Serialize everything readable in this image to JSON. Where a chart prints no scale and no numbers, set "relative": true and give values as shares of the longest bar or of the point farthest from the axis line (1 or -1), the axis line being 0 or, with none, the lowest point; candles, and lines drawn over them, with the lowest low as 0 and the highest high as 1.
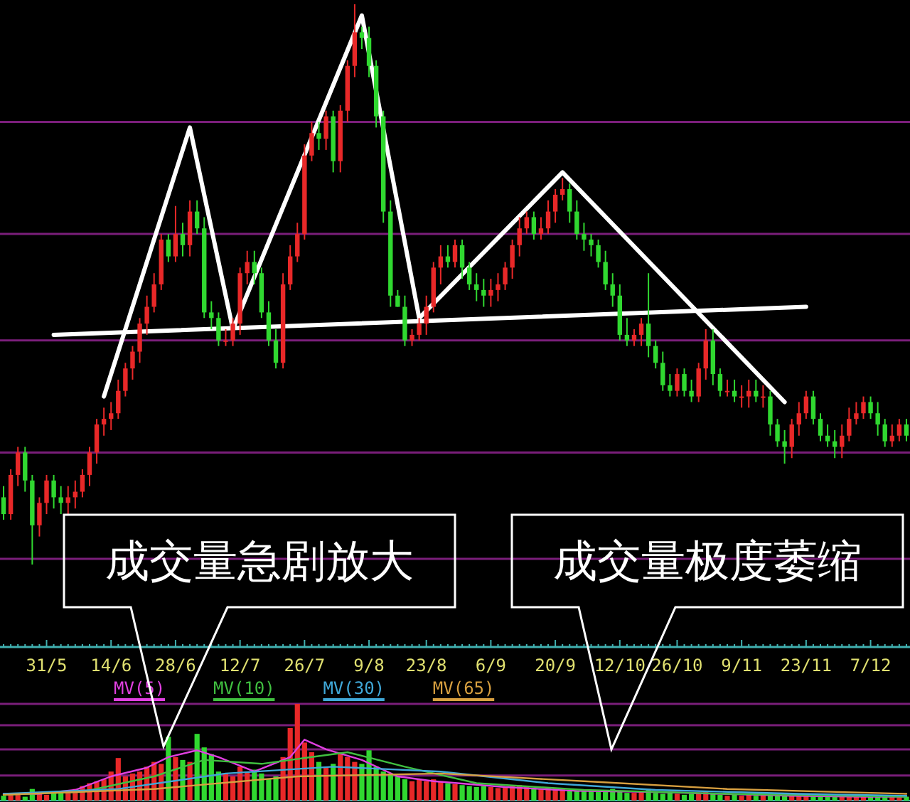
{
  "chart_data": [
    {
      "type": "candlestick",
      "relative": true,
      "tick_labels": false,
      "ref_lines": [
        {
          "axis": "y",
          "value": 0.79,
          "color": "#7a1e7a"
        },
        {
          "axis": "y",
          "value": 0.59,
          "color": "#7a1e7a"
        },
        {
          "axis": "y",
          "value": 0.4,
          "color": "#7a1e7a"
        },
        {
          "axis": "y",
          "value": 0.2,
          "color": "#7a1e7a"
        },
        {
          "axis": "y",
          "value": 0.01,
          "color": "#7a1e7a"
        }
      ],
      "categories": [
        null,
        null,
        null,
        null,
        null,
        null,
        null,
        null,
        null,
        null,
        null,
        null,
        null,
        null,
        null,
        null,
        null,
        null,
        null,
        null,
        null,
        null,
        null,
        null,
        null,
        null,
        null,
        null,
        null,
        null,
        null,
        null,
        null,
        null,
        null,
        null,
        null,
        null,
        null,
        null,
        null,
        null,
        null,
        null,
        null,
        null,
        null,
        null,
        null,
        null,
        null,
        null,
        null,
        null,
        null,
        null,
        null,
        null,
        null,
        null,
        null,
        null,
        null,
        null,
        null,
        null,
        null,
        null,
        null,
        null,
        null,
        null,
        null,
        null,
        null,
        null,
        null,
        null,
        null,
        null,
        null,
        null,
        null,
        null,
        null,
        null,
        null,
        null,
        null,
        null,
        null,
        null,
        null,
        null,
        null,
        null,
        null,
        null,
        null,
        null,
        null,
        null,
        null,
        null,
        null,
        null,
        null,
        null,
        null,
        null,
        null,
        null,
        null,
        null,
        null,
        null,
        null,
        null,
        null,
        null,
        null,
        null,
        null,
        null,
        null,
        null,
        null
      ],
      "ohlc": [
        [
          0.12,
          0.14,
          0.08,
          0.09
        ],
        [
          0.09,
          0.17,
          0.08,
          0.16
        ],
        [
          0.16,
          0.21,
          0.14,
          0.2
        ],
        [
          0.2,
          0.21,
          0.13,
          0.15
        ],
        [
          0.15,
          0.16,
          0,
          0.07
        ],
        [
          0.07,
          0.12,
          0.05,
          0.11
        ],
        [
          0.11,
          0.16,
          0.09,
          0.15
        ],
        [
          0.15,
          0.16,
          0.1,
          0.12
        ],
        [
          0.12,
          0.14,
          0.09,
          0.11
        ],
        [
          0.11,
          0.14,
          0.09,
          0.12
        ],
        [
          0.12,
          0.15,
          0.1,
          0.13
        ],
        [
          0.13,
          0.17,
          0.12,
          0.16
        ],
        [
          0.16,
          0.21,
          0.14,
          0.2
        ],
        [
          0.2,
          0.26,
          0.18,
          0.25
        ],
        [
          0.25,
          0.28,
          0.23,
          0.26
        ],
        [
          0.26,
          0.29,
          0.24,
          0.27
        ],
        [
          0.27,
          0.33,
          0.26,
          0.31
        ],
        [
          0.31,
          0.36,
          0.3,
          0.35
        ],
        [
          0.35,
          0.39,
          0.33,
          0.38
        ],
        [
          0.38,
          0.44,
          0.36,
          0.43
        ],
        [
          0.43,
          0.48,
          0.41,
          0.46
        ],
        [
          0.46,
          0.52,
          0.45,
          0.5
        ],
        [
          0.5,
          0.59,
          0.49,
          0.58
        ],
        [
          0.58,
          0.59,
          0.54,
          0.55
        ],
        [
          0.55,
          0.64,
          0.54,
          0.59
        ],
        [
          0.59,
          0.61,
          0.55,
          0.57
        ],
        [
          0.57,
          0.65,
          0.55,
          0.63
        ],
        [
          0.63,
          0.65,
          0.59,
          0.6
        ],
        [
          0.6,
          0.62,
          0.44,
          0.45
        ],
        [
          0.45,
          0.47,
          0.42,
          0.44
        ],
        [
          0.44,
          0.45,
          0.39,
          0.4
        ],
        [
          0.4,
          0.42,
          0.39,
          0.4
        ],
        [
          0.4,
          0.44,
          0.39,
          0.43
        ],
        [
          0.43,
          0.53,
          0.41,
          0.52
        ],
        [
          0.52,
          0.56,
          0.5,
          0.54
        ],
        [
          0.54,
          0.56,
          0.5,
          0.52
        ],
        [
          0.52,
          0.53,
          0.44,
          0.45
        ],
        [
          0.45,
          0.47,
          0.39,
          0.4
        ],
        [
          0.4,
          0.42,
          0.35,
          0.36
        ],
        [
          0.36,
          0.52,
          0.35,
          0.5
        ],
        [
          0.5,
          0.57,
          0.49,
          0.55
        ],
        [
          0.55,
          0.61,
          0.54,
          0.59
        ],
        [
          0.59,
          0.75,
          0.58,
          0.73
        ],
        [
          0.73,
          0.79,
          0.72,
          0.77
        ],
        [
          0.77,
          0.79,
          0.74,
          0.76
        ],
        [
          0.76,
          0.81,
          0.74,
          0.8
        ],
        [
          0.8,
          0.81,
          0.7,
          0.72
        ],
        [
          0.72,
          0.82,
          0.7,
          0.81
        ],
        [
          0.81,
          0.9,
          0.79,
          0.89
        ],
        [
          0.89,
          1,
          0.87,
          0.95
        ],
        [
          0.95,
          0.96,
          0.92,
          0.94
        ],
        [
          0.94,
          0.96,
          0.87,
          0.89
        ],
        [
          0.89,
          0.9,
          0.78,
          0.8
        ],
        [
          0.8,
          0.81,
          0.61,
          0.63
        ],
        [
          0.63,
          0.65,
          0.46,
          0.48
        ],
        [
          0.48,
          0.49,
          0.46,
          0.46
        ],
        [
          0.46,
          0.48,
          0.39,
          0.4
        ],
        [
          0.4,
          0.42,
          0.39,
          0.41
        ],
        [
          0.41,
          0.44,
          0.4,
          0.43
        ],
        [
          0.43,
          0.48,
          0.41,
          0.46
        ],
        [
          0.46,
          0.54,
          0.45,
          0.53
        ],
        [
          0.53,
          0.57,
          0.5,
          0.55
        ],
        [
          0.55,
          0.57,
          0.53,
          0.54
        ],
        [
          0.54,
          0.58,
          0.53,
          0.57
        ],
        [
          0.57,
          0.58,
          0.51,
          0.53
        ],
        [
          0.53,
          0.54,
          0.49,
          0.5
        ],
        [
          0.5,
          0.52,
          0.47,
          0.49
        ],
        [
          0.49,
          0.51,
          0.46,
          0.48
        ],
        [
          0.48,
          0.51,
          0.46,
          0.49
        ],
        [
          0.49,
          0.52,
          0.47,
          0.5
        ],
        [
          0.5,
          0.54,
          0.49,
          0.53
        ],
        [
          0.53,
          0.58,
          0.51,
          0.57
        ],
        [
          0.57,
          0.62,
          0.55,
          0.6
        ],
        [
          0.6,
          0.63,
          0.59,
          0.62
        ],
        [
          0.62,
          0.63,
          0.58,
          0.59
        ],
        [
          0.59,
          0.62,
          0.58,
          0.6
        ],
        [
          0.6,
          0.65,
          0.59,
          0.63
        ],
        [
          0.63,
          0.67,
          0.61,
          0.66
        ],
        [
          0.66,
          0.69,
          0.65,
          0.67
        ],
        [
          0.67,
          0.68,
          0.61,
          0.63
        ],
        [
          0.63,
          0.65,
          0.58,
          0.59
        ],
        [
          0.59,
          0.61,
          0.56,
          0.58
        ],
        [
          0.58,
          0.59,
          0.55,
          0.57
        ],
        [
          0.57,
          0.58,
          0.53,
          0.54
        ],
        [
          0.54,
          0.56,
          0.49,
          0.5
        ],
        [
          0.5,
          0.52,
          0.46,
          0.48
        ],
        [
          0.48,
          0.5,
          0.4,
          0.41
        ],
        [
          0.41,
          0.44,
          0.39,
          0.4
        ],
        [
          0.4,
          0.42,
          0.39,
          0.41
        ],
        [
          0.41,
          0.44,
          0.39,
          0.43
        ],
        [
          0.43,
          0.52,
          0.37,
          0.39
        ],
        [
          0.39,
          0.4,
          0.35,
          0.36
        ],
        [
          0.36,
          0.38,
          0.31,
          0.32
        ],
        [
          0.32,
          0.34,
          0.3,
          0.31
        ],
        [
          0.31,
          0.35,
          0.3,
          0.34
        ],
        [
          0.34,
          0.35,
          0.3,
          0.31
        ],
        [
          0.31,
          0.33,
          0.29,
          0.3
        ],
        [
          0.3,
          0.36,
          0.29,
          0.35
        ],
        [
          0.35,
          0.42,
          0.33,
          0.4
        ],
        [
          0.4,
          0.42,
          0.32,
          0.34
        ],
        [
          0.34,
          0.35,
          0.3,
          0.31
        ],
        [
          0.31,
          0.33,
          0.3,
          0.31
        ],
        [
          0.31,
          0.33,
          0.29,
          0.3
        ],
        [
          0.3,
          0.32,
          0.28,
          0.3
        ],
        [
          0.3,
          0.33,
          0.28,
          0.31
        ],
        [
          0.31,
          0.33,
          0.29,
          0.3
        ],
        [
          0.3,
          0.32,
          0.28,
          0.3
        ],
        [
          0.3,
          0.31,
          0.23,
          0.25
        ],
        [
          0.25,
          0.26,
          0.21,
          0.22
        ],
        [
          0.22,
          0.24,
          0.18,
          0.21
        ],
        [
          0.21,
          0.26,
          0.19,
          0.25
        ],
        [
          0.25,
          0.29,
          0.23,
          0.27
        ],
        [
          0.27,
          0.31,
          0.26,
          0.3
        ],
        [
          0.3,
          0.31,
          0.25,
          0.26
        ],
        [
          0.26,
          0.27,
          0.22,
          0.23
        ],
        [
          0.23,
          0.25,
          0.21,
          0.22
        ],
        [
          0.22,
          0.24,
          0.19,
          0.21
        ],
        [
          0.21,
          0.25,
          0.19,
          0.23
        ],
        [
          0.23,
          0.28,
          0.22,
          0.26
        ],
        [
          0.26,
          0.29,
          0.25,
          0.27
        ],
        [
          0.27,
          0.3,
          0.26,
          0.29
        ],
        [
          0.29,
          0.3,
          0.26,
          0.27
        ],
        [
          0.27,
          0.29,
          0.23,
          0.25
        ],
        [
          0.25,
          0.26,
          0.21,
          0.22
        ],
        [
          0.22,
          0.25,
          0.21,
          0.23
        ],
        [
          0.23,
          0.26,
          0.22,
          0.25
        ],
        [
          0.25,
          0.26,
          0.22,
          0.23
        ]
      ],
      "series": [
        {
          "type": "line",
          "color": "#ffffff",
          "values": [
            null,
            null,
            null,
            null,
            null,
            null,
            null,
            null,
            null,
            null,
            null,
            null,
            null,
            null,
            0.3,
            null,
            null,
            null,
            null,
            null,
            null,
            null,
            null,
            null,
            null,
            null,
            0.78,
            null,
            null,
            null,
            null,
            null,
            0.42,
            null,
            null,
            null,
            null,
            null,
            null,
            null,
            null,
            null,
            null,
            null,
            null,
            null,
            null,
            null,
            null,
            null,
            0.98,
            null,
            null,
            null,
            null,
            null,
            null,
            null,
            0.44,
            null,
            null,
            null,
            null,
            null,
            null,
            null,
            null,
            null,
            null,
            null,
            null,
            null,
            null,
            null,
            null,
            null,
            null,
            null,
            0.7,
            null,
            null,
            null,
            null,
            null,
            null,
            null,
            null,
            null,
            null,
            null,
            null,
            null,
            null,
            null,
            null,
            null,
            null,
            null,
            null,
            null,
            null,
            null,
            null,
            null,
            null,
            null,
            null,
            null,
            null,
            0.29,
            null,
            null,
            null,
            null,
            null,
            null,
            null,
            null,
            null,
            null,
            null,
            null,
            null,
            null,
            null,
            null,
            null
          ]
        },
        {
          "type": "line",
          "color": "#ffffff",
          "values": [
            null,
            null,
            null,
            null,
            null,
            null,
            null,
            0.41,
            null,
            null,
            null,
            null,
            null,
            null,
            null,
            null,
            null,
            null,
            null,
            null,
            null,
            null,
            null,
            null,
            null,
            null,
            null,
            null,
            null,
            null,
            null,
            null,
            null,
            null,
            null,
            null,
            null,
            null,
            null,
            null,
            null,
            null,
            null,
            null,
            null,
            null,
            null,
            null,
            null,
            null,
            null,
            null,
            null,
            null,
            null,
            null,
            null,
            null,
            null,
            null,
            null,
            null,
            null,
            null,
            null,
            null,
            null,
            null,
            null,
            null,
            null,
            null,
            null,
            null,
            null,
            null,
            null,
            null,
            null,
            null,
            null,
            null,
            null,
            null,
            null,
            null,
            null,
            null,
            null,
            null,
            null,
            null,
            null,
            null,
            null,
            null,
            null,
            null,
            null,
            null,
            null,
            null,
            null,
            null,
            null,
            null,
            null,
            null,
            null,
            null,
            null,
            null,
            0.46,
            null,
            null,
            null,
            null,
            null,
            null,
            null,
            null,
            null,
            null,
            null,
            null,
            null,
            null
          ]
        }
      ]
    },
    {
      "type": "bar",
      "relative": true,
      "legend": "top left",
      "ref_lines": [
        {
          "axis": "y",
          "value": 1.0,
          "color": "#7a1e7a"
        },
        {
          "axis": "y",
          "value": 0.78,
          "color": "#7a1e7a"
        },
        {
          "axis": "y",
          "value": 0.53,
          "color": "#7a1e7a"
        },
        {
          "axis": "y",
          "value": 0.26,
          "color": "#7a1e7a"
        }
      ],
      "categories": [
        null,
        null,
        null,
        null,
        null,
        null,
        "31/5",
        null,
        null,
        null,
        null,
        null,
        null,
        null,
        null,
        "14/6",
        null,
        null,
        null,
        null,
        null,
        null,
        null,
        null,
        "28/6",
        null,
        null,
        null,
        null,
        null,
        null,
        null,
        null,
        "12/7",
        null,
        null,
        null,
        null,
        null,
        null,
        null,
        null,
        "26/7",
        null,
        null,
        null,
        null,
        null,
        null,
        null,
        null,
        "9/8",
        null,
        null,
        null,
        null,
        null,
        null,
        null,
        "23/8",
        null,
        null,
        null,
        null,
        null,
        null,
        null,
        null,
        "6/9",
        null,
        null,
        null,
        null,
        null,
        null,
        null,
        null,
        "20/9",
        null,
        null,
        null,
        null,
        null,
        null,
        null,
        null,
        "12/10",
        null,
        null,
        null,
        null,
        null,
        null,
        null,
        "26/10",
        null,
        null,
        null,
        null,
        null,
        null,
        null,
        null,
        "9/11",
        null,
        null,
        null,
        null,
        null,
        null,
        null,
        null,
        "23/11",
        null,
        null,
        null,
        null,
        null,
        null,
        null,
        null,
        "7/12",
        null,
        null,
        null,
        null,
        null
      ],
      "values": [
        0.05,
        0.08,
        0.06,
        0.04,
        0.12,
        0.07,
        0.06,
        0.08,
        0.1,
        0.09,
        0.12,
        0.15,
        0.18,
        0.2,
        0.22,
        0.3,
        0.44,
        0.25,
        0.28,
        0.3,
        0.35,
        0.4,
        0.38,
        0.66,
        0.45,
        0.42,
        0.4,
        0.69,
        0.55,
        0.48,
        0.3,
        0.28,
        0.25,
        0.35,
        0.3,
        0.32,
        0.28,
        0.22,
        0.25,
        0.45,
        0.75,
        1.0,
        0.6,
        0.5,
        0.4,
        0.35,
        0.38,
        0.5,
        0.45,
        0.4,
        0.38,
        0.52,
        0.35,
        0.3,
        0.28,
        0.25,
        0.22,
        0.2,
        0.22,
        0.2,
        0.22,
        0.2,
        0.18,
        0.17,
        0.16,
        0.15,
        0.14,
        0.15,
        0.14,
        0.13,
        0.14,
        0.15,
        0.16,
        0.14,
        0.13,
        0.12,
        0.14,
        0.13,
        0.12,
        0.11,
        0.1,
        0.11,
        0.1,
        0.09,
        0.1,
        0.12,
        0.09,
        0.08,
        0.08,
        0.1,
        0.12,
        0.08,
        0.07,
        0.08,
        0.07,
        0.06,
        0.07,
        0.08,
        0.09,
        0.07,
        0.06,
        0.05,
        0.06,
        0.05,
        0.06,
        0.05,
        0.06,
        0.07,
        0.06,
        0.05,
        0.05,
        0.06,
        0.05,
        0.05,
        0.04,
        0.05,
        0.04,
        0.05,
        0.04,
        0.05,
        0.04,
        0.05,
        0.04,
        0.04,
        0.05,
        0.04,
        0.04
      ],
      "colors": [
        "#30d830",
        "#e82828",
        "#e82828",
        "#30d830",
        "#30d830",
        "#e82828",
        "#e82828",
        "#30d830",
        "#30d830",
        "#e82828",
        "#e82828",
        "#e82828",
        "#e82828",
        "#e82828",
        "#e82828",
        "#e82828",
        "#e82828",
        "#e82828",
        "#e82828",
        "#e82828",
        "#e82828",
        "#e82828",
        "#e82828",
        "#30d830",
        "#e82828",
        "#30d830",
        "#e82828",
        "#30d830",
        "#30d830",
        "#30d830",
        "#30d830",
        "#e82828",
        "#e82828",
        "#e82828",
        "#e82828",
        "#30d830",
        "#30d830",
        "#30d830",
        "#30d830",
        "#e82828",
        "#e82828",
        "#e82828",
        "#e82828",
        "#e82828",
        "#30d830",
        "#e82828",
        "#30d830",
        "#e82828",
        "#e82828",
        "#e82828",
        "#30d830",
        "#30d830",
        "#30d830",
        "#30d830",
        "#30d830",
        "#30d830",
        "#30d830",
        "#e82828",
        "#e82828",
        "#e82828",
        "#e82828",
        "#e82828",
        "#30d830",
        "#e82828",
        "#30d830",
        "#30d830",
        "#30d830",
        "#30d830",
        "#e82828",
        "#e82828",
        "#e82828",
        "#e82828",
        "#e82828",
        "#e82828",
        "#30d830",
        "#e82828",
        "#e82828",
        "#e82828",
        "#e82828",
        "#30d830",
        "#30d830",
        "#30d830",
        "#30d830",
        "#30d830",
        "#30d830",
        "#30d830",
        "#30d830",
        "#30d830",
        "#e82828",
        "#e82828",
        "#30d830",
        "#30d830",
        "#30d830",
        "#30d830",
        "#e82828",
        "#30d830",
        "#30d830",
        "#e82828",
        "#e82828",
        "#30d830",
        "#30d830",
        "#e82828",
        "#30d830",
        "#e82828",
        "#e82828",
        "#30d830",
        "#e82828",
        "#30d830",
        "#30d830",
        "#30d830",
        "#e82828",
        "#e82828",
        "#e82828",
        "#30d830",
        "#30d830",
        "#30d830",
        "#30d830",
        "#e82828",
        "#e82828",
        "#e82828",
        "#e82828",
        "#30d830",
        "#30d830",
        "#30d830",
        "#e82828",
        "#e82828",
        "#30d830"
      ],
      "series": [
        {
          "type": "line",
          "name": "MV(5)",
          "color": "#e040e0",
          "values": [
            0.07,
            null,
            null,
            null,
            null,
            0.07,
            null,
            null,
            null,
            null,
            0.11,
            null,
            null,
            null,
            null,
            0.25,
            null,
            null,
            null,
            null,
            0.34,
            null,
            null,
            0.45,
            null,
            null,
            null,
            0.52,
            null,
            null,
            0.45,
            null,
            null,
            null,
            null,
            0.3,
            null,
            null,
            null,
            null,
            0.45,
            null,
            0.63,
            null,
            null,
            0.53,
            null,
            null,
            null,
            null,
            0.42,
            null,
            null,
            null,
            null,
            0.25,
            null,
            null,
            null,
            null,
            0.2,
            null,
            null,
            null,
            null,
            null,
            null,
            null,
            null,
            null,
            0.14,
            null,
            null,
            null,
            null,
            null,
            null,
            null,
            null,
            null,
            0.1,
            null,
            null,
            null,
            null,
            null,
            null,
            null,
            null,
            null,
            0.09,
            null,
            null,
            null,
            null,
            null,
            null,
            null,
            null,
            null,
            0.07,
            null,
            null,
            null,
            null,
            null,
            null,
            null,
            null,
            null,
            0.05,
            null,
            null,
            null,
            null,
            null,
            null,
            null,
            null,
            null,
            0.04,
            null,
            null,
            null,
            null,
            null,
            0.04
          ]
        },
        {
          "type": "line",
          "name": "MV(10)",
          "color": "#40c040",
          "values": [
            0.06,
            null,
            null,
            null,
            null,
            null,
            null,
            null,
            null,
            null,
            null,
            0.09,
            null,
            null,
            null,
            null,
            null,
            null,
            null,
            null,
            null,
            0.25,
            null,
            null,
            null,
            null,
            null,
            null,
            0.42,
            null,
            null,
            null,
            null,
            null,
            null,
            null,
            0.38,
            null,
            null,
            null,
            null,
            null,
            null,
            0.45,
            null,
            null,
            null,
            null,
            0.5,
            null,
            null,
            null,
            null,
            null,
            null,
            null,
            0.35,
            null,
            null,
            null,
            null,
            null,
            null,
            null,
            null,
            null,
            0.18,
            null,
            null,
            null,
            null,
            null,
            null,
            null,
            null,
            null,
            null,
            null,
            null,
            null,
            null,
            0.11,
            null,
            null,
            null,
            null,
            null,
            null,
            null,
            null,
            null,
            null,
            null,
            null,
            null,
            null,
            null,
            null,
            null,
            null,
            null,
            0.07,
            null,
            null,
            null,
            null,
            null,
            null,
            null,
            null,
            null,
            null,
            null,
            null,
            null,
            null,
            null,
            null,
            null,
            null,
            null,
            null,
            null,
            null,
            null,
            null,
            0.04
          ]
        },
        {
          "type": "line",
          "name": "MV(30)",
          "color": "#40a8d8",
          "values": [
            0.07,
            null,
            null,
            null,
            null,
            null,
            null,
            null,
            null,
            null,
            null,
            null,
            null,
            null,
            null,
            null,
            0.12,
            null,
            null,
            null,
            null,
            null,
            null,
            null,
            null,
            null,
            null,
            null,
            null,
            null,
            null,
            0.28,
            null,
            null,
            null,
            null,
            null,
            null,
            null,
            null,
            null,
            null,
            null,
            null,
            null,
            null,
            0.35,
            null,
            null,
            null,
            null,
            null,
            null,
            null,
            null,
            null,
            null,
            null,
            null,
            null,
            null,
            0.3,
            null,
            null,
            null,
            null,
            null,
            null,
            null,
            null,
            null,
            null,
            null,
            null,
            null,
            null,
            0.18,
            null,
            null,
            null,
            null,
            null,
            null,
            null,
            null,
            null,
            null,
            null,
            null,
            null,
            null,
            0.11,
            null,
            null,
            null,
            null,
            null,
            null,
            null,
            null,
            null,
            null,
            null,
            null,
            null,
            null,
            null,
            null,
            null,
            null,
            null,
            0.07,
            null,
            null,
            null,
            null,
            null,
            null,
            null,
            null,
            null,
            null,
            null,
            null,
            null,
            null,
            0.05
          ]
        },
        {
          "type": "line",
          "name": "MV(65)",
          "color": "#d8a040",
          "values": [
            0.06,
            null,
            null,
            null,
            null,
            null,
            null,
            null,
            null,
            null,
            null,
            null,
            null,
            null,
            null,
            null,
            null,
            null,
            null,
            null,
            null,
            0.12,
            null,
            null,
            null,
            null,
            null,
            null,
            null,
            null,
            null,
            null,
            null,
            null,
            null,
            null,
            null,
            null,
            null,
            null,
            null,
            0.25,
            null,
            null,
            null,
            null,
            null,
            null,
            null,
            null,
            null,
            null,
            null,
            null,
            null,
            null,
            null,
            null,
            null,
            null,
            null,
            0.28,
            null,
            null,
            null,
            null,
            null,
            null,
            null,
            null,
            null,
            null,
            null,
            null,
            null,
            null,
            null,
            null,
            null,
            null,
            null,
            0.2,
            null,
            null,
            null,
            null,
            null,
            null,
            null,
            null,
            null,
            null,
            null,
            null,
            null,
            null,
            null,
            null,
            null,
            null,
            null,
            0.12,
            null,
            null,
            null,
            null,
            null,
            null,
            null,
            null,
            null,
            null,
            null,
            null,
            null,
            null,
            null,
            null,
            null,
            null,
            null,
            null,
            null,
            null,
            null,
            null,
            0.07
          ]
        }
      ],
      "annotations": [
        "成交量急剧放大",
        "成交量极度萎缩"
      ]
    }
  ]
}
